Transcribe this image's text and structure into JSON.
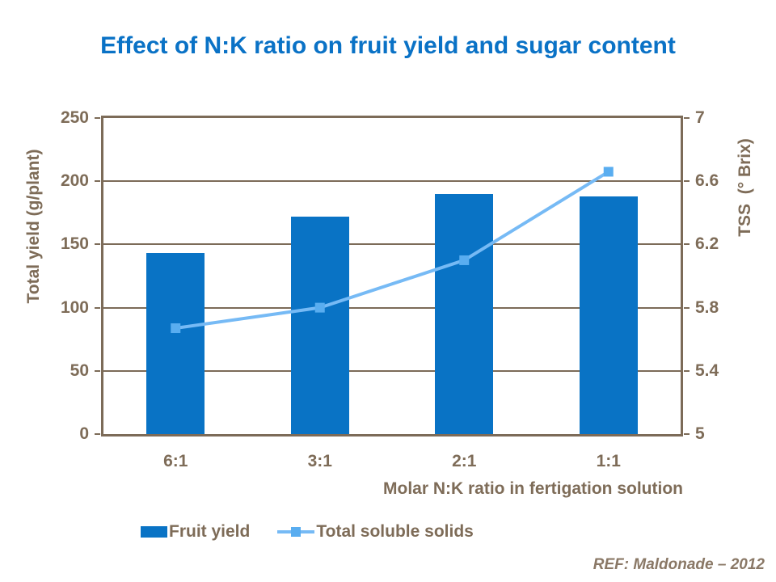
{
  "title": "Effect of N:K ratio on fruit yield and sugar content",
  "footer": {
    "ref": "REF: Maldonade – 2012"
  },
  "colors": {
    "title": "#0a72c6",
    "bar": "#0973c5",
    "line": "#76baf5",
    "marker": "#59adf0",
    "axis": "#7c6b58",
    "text": "#7e6c58",
    "ref_text": "#8a7866"
  },
  "chart_data": {
    "type": "bar+line",
    "title": "Effect of N:K ratio on fruit yield and sugar content",
    "categories": [
      "6:1",
      "3:1",
      "2:1",
      "1:1"
    ],
    "series": [
      {
        "name": "Fruit yield",
        "type": "bar",
        "axis": "left",
        "values": [
          143,
          172,
          190,
          188
        ]
      },
      {
        "name": "Total soluble solids",
        "type": "line",
        "axis": "right",
        "values": [
          5.67,
          5.8,
          6.1,
          6.66
        ]
      }
    ],
    "xlabel": "Molar N:K ratio in fertigation solution",
    "left_axis": {
      "label": "Total yield (g/plant)",
      "min": 0,
      "max": 250,
      "ticks": [
        "0",
        "50",
        "100",
        "150",
        "200",
        "250"
      ]
    },
    "right_axis": {
      "label": "TSS  (° Brix)",
      "min": 5,
      "max": 7,
      "ticks": [
        "5",
        "5.4",
        "5.8",
        "6.2",
        "6.6",
        "7"
      ]
    },
    "grid": true,
    "legend_position": "bottom"
  }
}
